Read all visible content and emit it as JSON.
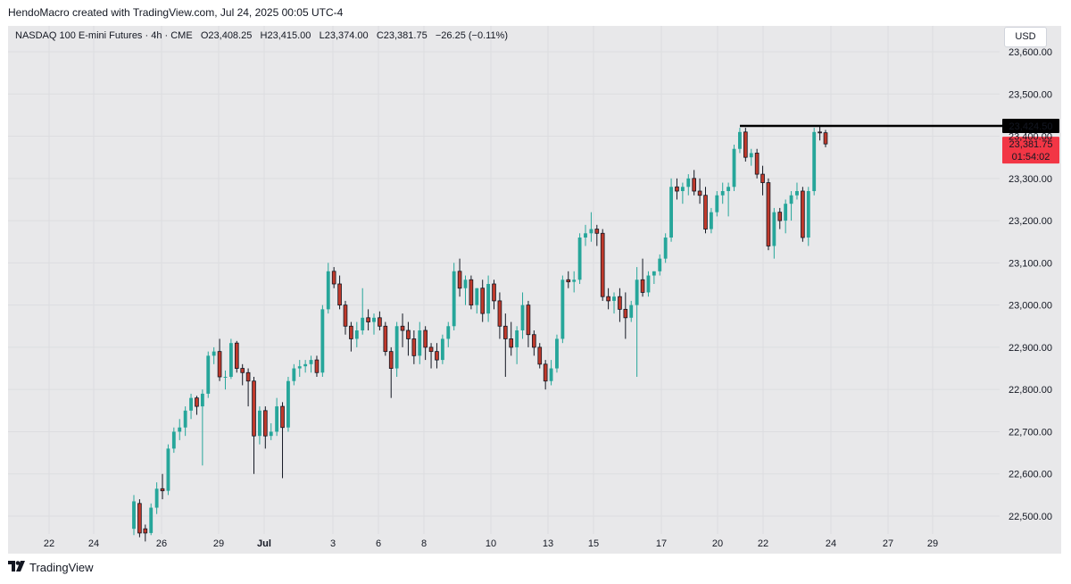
{
  "caption": "HendoMacro created with TradingView.com, Jul 24, 2025 00:05 UTC-4",
  "legend": {
    "symbol": "NASDAQ 100 E-mini Futures · 4h · CME",
    "open_label": "O",
    "open": "23,408.25",
    "high_label": "H",
    "high": "23,415.00",
    "low_label": "L",
    "low": "23,374.00",
    "close_label": "C",
    "close": "23,381.75",
    "change": "−26.25 (−0.11%)"
  },
  "currency_button": "USD",
  "footer_brand": "TradingView",
  "colors": {
    "up": "#26a69a",
    "down": "#ef5350",
    "down_body": "#c0392b",
    "background": "#e8e8ea",
    "level_line": "#000000",
    "price_badge": "#f23645"
  },
  "chart_data": {
    "type": "candlestick",
    "interval": "4h",
    "ylim": [
      22450,
      23650
    ],
    "yticks": [
      "22,500.00",
      "22,600.00",
      "22,700.00",
      "22,800.00",
      "22,900.00",
      "23,000.00",
      "23,100.00",
      "23,200.00",
      "23,300.00",
      "23,400.00",
      "23,500.00",
      "23,600.00"
    ],
    "xticks": [
      "22",
      "24",
      "26",
      "29",
      "Jul",
      "3",
      "6",
      "8",
      "10",
      "13",
      "15",
      "17",
      "20",
      "22",
      "24",
      "27",
      "29"
    ],
    "resistance_level": {
      "value": 23424.5,
      "label": "23,424.50"
    },
    "last_price": {
      "value": 23381.75,
      "label": "23,381.75",
      "countdown": "01:54:02"
    },
    "candles": [
      {
        "o": 22470,
        "h": 22550,
        "l": 22455,
        "c": 22535
      },
      {
        "o": 22530,
        "h": 22540,
        "l": 22450,
        "c": 22460
      },
      {
        "o": 22470,
        "h": 22480,
        "l": 22440,
        "c": 22460
      },
      {
        "o": 22460,
        "h": 22530,
        "l": 22455,
        "c": 22520
      },
      {
        "o": 22520,
        "h": 22580,
        "l": 22505,
        "c": 22565
      },
      {
        "o": 22565,
        "h": 22600,
        "l": 22540,
        "c": 22560
      },
      {
        "o": 22560,
        "h": 22670,
        "l": 22550,
        "c": 22660
      },
      {
        "o": 22660,
        "h": 22710,
        "l": 22650,
        "c": 22700
      },
      {
        "o": 22700,
        "h": 22730,
        "l": 22680,
        "c": 22710
      },
      {
        "o": 22710,
        "h": 22760,
        "l": 22690,
        "c": 22750
      },
      {
        "o": 22750,
        "h": 22790,
        "l": 22730,
        "c": 22780
      },
      {
        "o": 22780,
        "h": 22785,
        "l": 22740,
        "c": 22760
      },
      {
        "o": 22760,
        "h": 22800,
        "l": 22620,
        "c": 22790
      },
      {
        "o": 22790,
        "h": 22890,
        "l": 22780,
        "c": 22880
      },
      {
        "o": 22880,
        "h": 22900,
        "l": 22860,
        "c": 22890
      },
      {
        "o": 22890,
        "h": 22920,
        "l": 22820,
        "c": 22830
      },
      {
        "o": 22830,
        "h": 22845,
        "l": 22800,
        "c": 22830
      },
      {
        "o": 22830,
        "h": 22920,
        "l": 22825,
        "c": 22910
      },
      {
        "o": 22910,
        "h": 22915,
        "l": 22840,
        "c": 22850
      },
      {
        "o": 22850,
        "h": 22860,
        "l": 22810,
        "c": 22840
      },
      {
        "o": 22840,
        "h": 22850,
        "l": 22760,
        "c": 22820
      },
      {
        "o": 22820,
        "h": 22830,
        "l": 22600,
        "c": 22690
      },
      {
        "o": 22690,
        "h": 22760,
        "l": 22670,
        "c": 22750
      },
      {
        "o": 22750,
        "h": 22760,
        "l": 22660,
        "c": 22690
      },
      {
        "o": 22690,
        "h": 22720,
        "l": 22680,
        "c": 22700
      },
      {
        "o": 22700,
        "h": 22780,
        "l": 22690,
        "c": 22760
      },
      {
        "o": 22760,
        "h": 22770,
        "l": 22590,
        "c": 22710
      },
      {
        "o": 22710,
        "h": 22830,
        "l": 22700,
        "c": 22820
      },
      {
        "o": 22820,
        "h": 22860,
        "l": 22810,
        "c": 22850
      },
      {
        "o": 22850,
        "h": 22870,
        "l": 22830,
        "c": 22855
      },
      {
        "o": 22855,
        "h": 22870,
        "l": 22840,
        "c": 22860
      },
      {
        "o": 22860,
        "h": 22880,
        "l": 22840,
        "c": 22870
      },
      {
        "o": 22870,
        "h": 22880,
        "l": 22830,
        "c": 22840
      },
      {
        "o": 22840,
        "h": 23000,
        "l": 22830,
        "c": 22990
      },
      {
        "o": 22990,
        "h": 23100,
        "l": 22980,
        "c": 23080
      },
      {
        "o": 23080,
        "h": 23090,
        "l": 23040,
        "c": 23050
      },
      {
        "o": 23050,
        "h": 23070,
        "l": 22990,
        "c": 23000
      },
      {
        "o": 23000,
        "h": 23010,
        "l": 22930,
        "c": 22950
      },
      {
        "o": 22950,
        "h": 22960,
        "l": 22890,
        "c": 22920
      },
      {
        "o": 22920,
        "h": 22960,
        "l": 22900,
        "c": 22940
      },
      {
        "o": 22940,
        "h": 23040,
        "l": 22930,
        "c": 22970
      },
      {
        "o": 22970,
        "h": 22990,
        "l": 22940,
        "c": 22960
      },
      {
        "o": 22960,
        "h": 22980,
        "l": 22930,
        "c": 22970
      },
      {
        "o": 22970,
        "h": 22985,
        "l": 22940,
        "c": 22950
      },
      {
        "o": 22950,
        "h": 22960,
        "l": 22880,
        "c": 22890
      },
      {
        "o": 22890,
        "h": 22900,
        "l": 22780,
        "c": 22850
      },
      {
        "o": 22850,
        "h": 22960,
        "l": 22830,
        "c": 22950
      },
      {
        "o": 22950,
        "h": 22980,
        "l": 22900,
        "c": 22940
      },
      {
        "o": 22940,
        "h": 22960,
        "l": 22880,
        "c": 22920
      },
      {
        "o": 22920,
        "h": 22940,
        "l": 22860,
        "c": 22880
      },
      {
        "o": 22880,
        "h": 22960,
        "l": 22860,
        "c": 22940
      },
      {
        "o": 22940,
        "h": 22950,
        "l": 22870,
        "c": 22900
      },
      {
        "o": 22900,
        "h": 22910,
        "l": 22850,
        "c": 22890
      },
      {
        "o": 22890,
        "h": 22910,
        "l": 22850,
        "c": 22870
      },
      {
        "o": 22870,
        "h": 22930,
        "l": 22860,
        "c": 22920
      },
      {
        "o": 22920,
        "h": 22960,
        "l": 22900,
        "c": 22950
      },
      {
        "o": 22950,
        "h": 23100,
        "l": 22940,
        "c": 23080
      },
      {
        "o": 23080,
        "h": 23110,
        "l": 23020,
        "c": 23040
      },
      {
        "o": 23040,
        "h": 23070,
        "l": 23000,
        "c": 23060
      },
      {
        "o": 23060,
        "h": 23070,
        "l": 22990,
        "c": 23000
      },
      {
        "o": 23000,
        "h": 23040,
        "l": 22980,
        "c": 23040
      },
      {
        "o": 23040,
        "h": 23060,
        "l": 22960,
        "c": 22980
      },
      {
        "o": 22980,
        "h": 23070,
        "l": 22960,
        "c": 23050
      },
      {
        "o": 23050,
        "h": 23060,
        "l": 22990,
        "c": 23010
      },
      {
        "o": 23010,
        "h": 23030,
        "l": 22920,
        "c": 22950
      },
      {
        "o": 22950,
        "h": 22980,
        "l": 22830,
        "c": 22920
      },
      {
        "o": 22920,
        "h": 22960,
        "l": 22880,
        "c": 22900
      },
      {
        "o": 22900,
        "h": 22950,
        "l": 22860,
        "c": 22940
      },
      {
        "o": 22940,
        "h": 23030,
        "l": 22920,
        "c": 23000
      },
      {
        "o": 23000,
        "h": 23010,
        "l": 22900,
        "c": 22930
      },
      {
        "o": 22930,
        "h": 22940,
        "l": 22880,
        "c": 22900
      },
      {
        "o": 22900,
        "h": 22910,
        "l": 22850,
        "c": 22860
      },
      {
        "o": 22860,
        "h": 22870,
        "l": 22800,
        "c": 22820
      },
      {
        "o": 22820,
        "h": 22870,
        "l": 22810,
        "c": 22850
      },
      {
        "o": 22850,
        "h": 22930,
        "l": 22840,
        "c": 22920
      },
      {
        "o": 22920,
        "h": 23070,
        "l": 22910,
        "c": 23060
      },
      {
        "o": 23060,
        "h": 23080,
        "l": 23040,
        "c": 23055
      },
      {
        "o": 23055,
        "h": 23080,
        "l": 23030,
        "c": 23060
      },
      {
        "o": 23060,
        "h": 23170,
        "l": 23050,
        "c": 23160
      },
      {
        "o": 23160,
        "h": 23190,
        "l": 23140,
        "c": 23170
      },
      {
        "o": 23170,
        "h": 23220,
        "l": 23150,
        "c": 23180
      },
      {
        "o": 23180,
        "h": 23190,
        "l": 23140,
        "c": 23170
      },
      {
        "o": 23170,
        "h": 23180,
        "l": 23010,
        "c": 23020
      },
      {
        "o": 23020,
        "h": 23040,
        "l": 22990,
        "c": 23010
      },
      {
        "o": 23010,
        "h": 23030,
        "l": 22980,
        "c": 23020
      },
      {
        "o": 23020,
        "h": 23040,
        "l": 22960,
        "c": 22990
      },
      {
        "o": 22990,
        "h": 23030,
        "l": 22920,
        "c": 22970
      },
      {
        "o": 22970,
        "h": 23010,
        "l": 22960,
        "c": 23000
      },
      {
        "o": 23000,
        "h": 23090,
        "l": 22830,
        "c": 23060
      },
      {
        "o": 23060,
        "h": 23110,
        "l": 23020,
        "c": 23030
      },
      {
        "o": 23030,
        "h": 23080,
        "l": 23020,
        "c": 23070
      },
      {
        "o": 23070,
        "h": 23080,
        "l": 23050,
        "c": 23080
      },
      {
        "o": 23080,
        "h": 23120,
        "l": 23070,
        "c": 23110
      },
      {
        "o": 23110,
        "h": 23170,
        "l": 23100,
        "c": 23160
      },
      {
        "o": 23160,
        "h": 23300,
        "l": 23150,
        "c": 23280
      },
      {
        "o": 23280,
        "h": 23300,
        "l": 23250,
        "c": 23270
      },
      {
        "o": 23270,
        "h": 23290,
        "l": 23240,
        "c": 23280
      },
      {
        "o": 23280,
        "h": 23310,
        "l": 23260,
        "c": 23300
      },
      {
        "o": 23300,
        "h": 23320,
        "l": 23260,
        "c": 23270
      },
      {
        "o": 23270,
        "h": 23300,
        "l": 23240,
        "c": 23260
      },
      {
        "o": 23260,
        "h": 23280,
        "l": 23170,
        "c": 23180
      },
      {
        "o": 23180,
        "h": 23230,
        "l": 23170,
        "c": 23220
      },
      {
        "o": 23220,
        "h": 23270,
        "l": 23210,
        "c": 23260
      },
      {
        "o": 23260,
        "h": 23290,
        "l": 23240,
        "c": 23270
      },
      {
        "o": 23270,
        "h": 23290,
        "l": 23210,
        "c": 23280
      },
      {
        "o": 23280,
        "h": 23380,
        "l": 23270,
        "c": 23370
      },
      {
        "o": 23370,
        "h": 23420,
        "l": 23360,
        "c": 23410
      },
      {
        "o": 23410,
        "h": 23420,
        "l": 23340,
        "c": 23350
      },
      {
        "o": 23350,
        "h": 23370,
        "l": 23330,
        "c": 23360
      },
      {
        "o": 23360,
        "h": 23370,
        "l": 23300,
        "c": 23310
      },
      {
        "o": 23310,
        "h": 23330,
        "l": 23260,
        "c": 23290
      },
      {
        "o": 23290,
        "h": 23300,
        "l": 23130,
        "c": 23140
      },
      {
        "o": 23140,
        "h": 23230,
        "l": 23110,
        "c": 23220
      },
      {
        "o": 23220,
        "h": 23230,
        "l": 23180,
        "c": 23200
      },
      {
        "o": 23200,
        "h": 23250,
        "l": 23170,
        "c": 23240
      },
      {
        "o": 23240,
        "h": 23270,
        "l": 23200,
        "c": 23260
      },
      {
        "o": 23260,
        "h": 23290,
        "l": 23250,
        "c": 23270
      },
      {
        "o": 23270,
        "h": 23280,
        "l": 23150,
        "c": 23160
      },
      {
        "o": 23160,
        "h": 23280,
        "l": 23140,
        "c": 23270
      },
      {
        "o": 23270,
        "h": 23420,
        "l": 23260,
        "c": 23410
      },
      {
        "o": 23410,
        "h": 23425,
        "l": 23390,
        "c": 23408
      },
      {
        "o": 23408.25,
        "h": 23415,
        "l": 23374,
        "c": 23381.75
      }
    ]
  }
}
